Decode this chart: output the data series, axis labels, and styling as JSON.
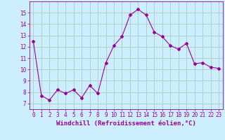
{
  "x": [
    0,
    1,
    2,
    3,
    4,
    5,
    6,
    7,
    8,
    9,
    10,
    11,
    12,
    13,
    14,
    15,
    16,
    17,
    18,
    19,
    20,
    21,
    22,
    23
  ],
  "y": [
    12.5,
    7.7,
    7.3,
    8.2,
    7.9,
    8.2,
    7.5,
    8.6,
    7.9,
    10.6,
    12.1,
    12.9,
    14.8,
    15.3,
    14.8,
    13.3,
    12.9,
    12.1,
    11.8,
    12.3,
    10.5,
    10.6,
    10.2,
    10.1
  ],
  "line_color": "#990099",
  "marker": "D",
  "marker_size": 2,
  "bg_color": "#cceeff",
  "grid_color": "#aaccbb",
  "xlabel": "Windchill (Refroidissement éolien,°C)",
  "xlim": [
    -0.5,
    23.5
  ],
  "ylim": [
    6.5,
    16.0
  ],
  "yticks": [
    7,
    8,
    9,
    10,
    11,
    12,
    13,
    14,
    15
  ],
  "xticks": [
    0,
    1,
    2,
    3,
    4,
    5,
    6,
    7,
    8,
    9,
    10,
    11,
    12,
    13,
    14,
    15,
    16,
    17,
    18,
    19,
    20,
    21,
    22,
    23
  ],
  "xlabel_fontsize": 6.5,
  "tick_fontsize": 5.5,
  "label_color": "#990099"
}
